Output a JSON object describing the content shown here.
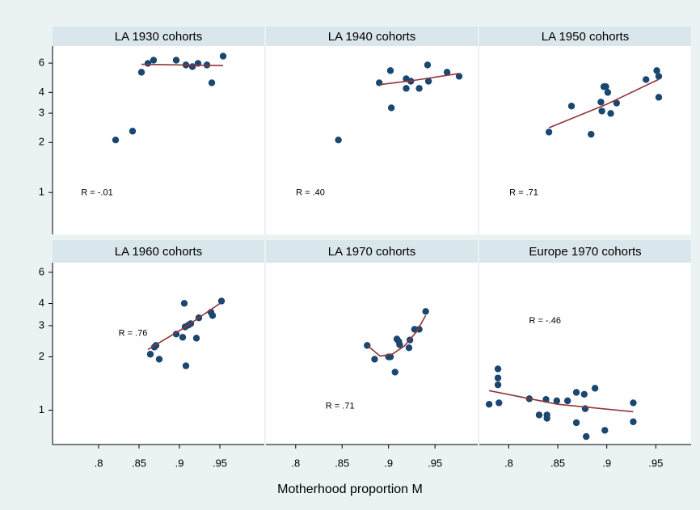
{
  "x_label": "Motherhood proportion M",
  "chart_data": [
    {
      "type": "scatter",
      "title": "LA 1930 cohorts",
      "annotation": "R = -.01",
      "log_y": true,
      "color": "#1a476f",
      "fit_color": "#90353b",
      "xlim": [
        0.743,
        1.005
      ],
      "ylim": [
        0.56,
        7.6
      ],
      "yticks": [
        1,
        2,
        3,
        4,
        6
      ],
      "x": [
        0.821,
        0.842,
        0.853,
        0.861,
        0.868,
        0.896,
        0.908,
        0.916,
        0.923,
        0.934,
        0.94,
        0.954
      ],
      "values": [
        2.07,
        2.34,
        5.29,
        5.98,
        6.25,
        6.25,
        5.85,
        5.72,
        5.98,
        5.85,
        4.57,
        6.61
      ],
      "fit": {
        "x": [
          0.853,
          0.954
        ],
        "values": [
          5.9,
          5.8
        ]
      }
    },
    {
      "type": "scatter",
      "title": "LA 1940 cohorts",
      "annotation": "R = .40",
      "log_y": true,
      "color": "#1a476f",
      "fit_color": "#90353b",
      "xlim": [
        0.768,
        0.996
      ],
      "ylim": [
        0.56,
        7.6
      ],
      "x": [
        0.846,
        0.89,
        0.902,
        0.903,
        0.919,
        0.919,
        0.924,
        0.933,
        0.942,
        0.943,
        0.963,
        0.976
      ],
      "values": [
        2.07,
        4.57,
        5.41,
        3.23,
        4.83,
        4.23,
        4.67,
        4.23,
        5.85,
        4.67,
        5.29,
        5.0
      ],
      "fit": {
        "x": [
          0.89,
          0.93,
          0.976
        ],
        "values": [
          4.45,
          4.75,
          5.2
        ]
      }
    },
    {
      "type": "scatter",
      "title": "LA 1950 cohorts",
      "annotation": "R = .71",
      "log_y": true,
      "color": "#1a476f",
      "fit_color": "#90353b",
      "xlim": [
        0.77,
        0.986
      ],
      "ylim": [
        0.56,
        7.6
      ],
      "x": [
        0.841,
        0.864,
        0.884,
        0.894,
        0.895,
        0.897,
        0.899,
        0.901,
        0.904,
        0.91,
        0.94,
        0.951,
        0.953,
        0.953
      ],
      "values": [
        2.31,
        3.31,
        2.24,
        3.5,
        3.09,
        4.33,
        4.33,
        4.0,
        2.99,
        3.45,
        4.78,
        5.41,
        5.0,
        3.74
      ],
      "fit": {
        "x": [
          0.841,
          0.9,
          0.953
        ],
        "values": [
          2.45,
          3.4,
          4.8
        ]
      }
    },
    {
      "type": "scatter",
      "title": "LA 1960 cohorts",
      "annotation": "R = .76",
      "log_y": true,
      "color": "#1a476f",
      "fit_color": "#90353b",
      "xlim": [
        0.743,
        1.005
      ],
      "ylim": [
        0.64,
        6.8
      ],
      "yticks": [
        1,
        2,
        3,
        4,
        6
      ],
      "xticks": [
        {
          "value": 0.8,
          "label": ".8"
        },
        {
          "value": 0.85,
          "label": ".85"
        },
        {
          "value": 0.9,
          "label": ".9"
        },
        {
          "value": 0.95,
          "label": ".95"
        }
      ],
      "x": [
        0.864,
        0.869,
        0.871,
        0.875,
        0.896,
        0.904,
        0.906,
        0.907,
        0.908,
        0.911,
        0.914,
        0.921,
        0.924,
        0.939,
        0.941,
        0.952
      ],
      "values": [
        2.07,
        2.27,
        2.32,
        1.94,
        2.69,
        2.58,
        4.01,
        2.95,
        1.78,
        3.02,
        3.08,
        2.55,
        3.32,
        3.57,
        3.42,
        4.13
      ],
      "fit": {
        "x": [
          0.861,
          0.905,
          0.95
        ],
        "values": [
          2.2,
          2.9,
          4.0
        ]
      }
    },
    {
      "type": "scatter",
      "title": "LA 1970 cohorts",
      "annotation": "R = .71",
      "log_y": true,
      "color": "#1a476f",
      "fit_color": "#90353b",
      "xlim": [
        0.768,
        0.996
      ],
      "ylim": [
        0.64,
        6.8
      ],
      "xticks": [
        {
          "value": 0.8,
          "label": ".8"
        },
        {
          "value": 0.85,
          "label": ".85"
        },
        {
          "value": 0.9,
          "label": ".9"
        },
        {
          "value": 0.95,
          "label": ".95"
        }
      ],
      "x": [
        0.877,
        0.885,
        0.9,
        0.902,
        0.907,
        0.909,
        0.911,
        0.912,
        0.922,
        0.923,
        0.928,
        0.933,
        0.94
      ],
      "values": [
        2.32,
        1.94,
        2.0,
        2.0,
        1.64,
        2.52,
        2.44,
        2.34,
        2.25,
        2.49,
        2.86,
        2.86,
        3.61
      ],
      "fit": {
        "x": [
          0.877,
          0.891,
          0.904,
          0.917,
          0.93,
          0.94
        ],
        "values": [
          2.32,
          2.02,
          2.07,
          2.3,
          2.77,
          3.42
        ]
      }
    },
    {
      "type": "scatter",
      "title": "Europe 1970 cohorts",
      "annotation": "R = -.46",
      "log_y": true,
      "color": "#1a476f",
      "fit_color": "#90353b",
      "xlim": [
        0.77,
        0.986
      ],
      "ylim": [
        0.64,
        6.8
      ],
      "xticks": [
        {
          "value": 0.8,
          "label": ".8"
        },
        {
          "value": 0.85,
          "label": ".85"
        },
        {
          "value": 0.9,
          "label": ".9"
        },
        {
          "value": 0.95,
          "label": ".95"
        }
      ],
      "x": [
        0.78,
        0.789,
        0.789,
        0.789,
        0.79,
        0.821,
        0.831,
        0.838,
        0.839,
        0.839,
        0.849,
        0.86,
        0.869,
        0.869,
        0.877,
        0.878,
        0.879,
        0.888,
        0.898,
        0.927,
        0.927
      ],
      "values": [
        1.08,
        1.71,
        1.52,
        1.39,
        1.1,
        1.16,
        0.94,
        1.15,
        0.94,
        0.9,
        1.13,
        1.13,
        1.26,
        0.85,
        1.23,
        1.02,
        0.71,
        1.33,
        0.77,
        1.1,
        0.86
      ],
      "fit": {
        "x": [
          0.78,
          0.85,
          0.927
        ],
        "values": [
          1.29,
          1.08,
          0.98
        ]
      }
    }
  ]
}
